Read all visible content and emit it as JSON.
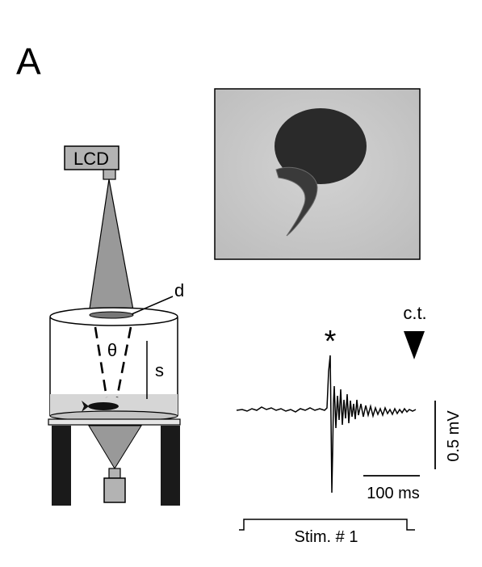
{
  "panel_label": "A",
  "apparatus": {
    "lcd_label": "LCD",
    "d_label": "d",
    "theta_label": "θ",
    "s_label": "s"
  },
  "recording": {
    "peak_marker": "*",
    "ct_label": "c.t.",
    "scale_time_label": "100 ms",
    "scale_voltage_label": "0.5 mV",
    "stim_label": "Stim. # 1"
  },
  "colors": {
    "cone_gray": "#999999",
    "water_gray": "#d6d6d6",
    "leg_black": "#1a1a1a",
    "photo_bg": "#c9c9c9",
    "embryo_dark": "#2a2a2a"
  }
}
